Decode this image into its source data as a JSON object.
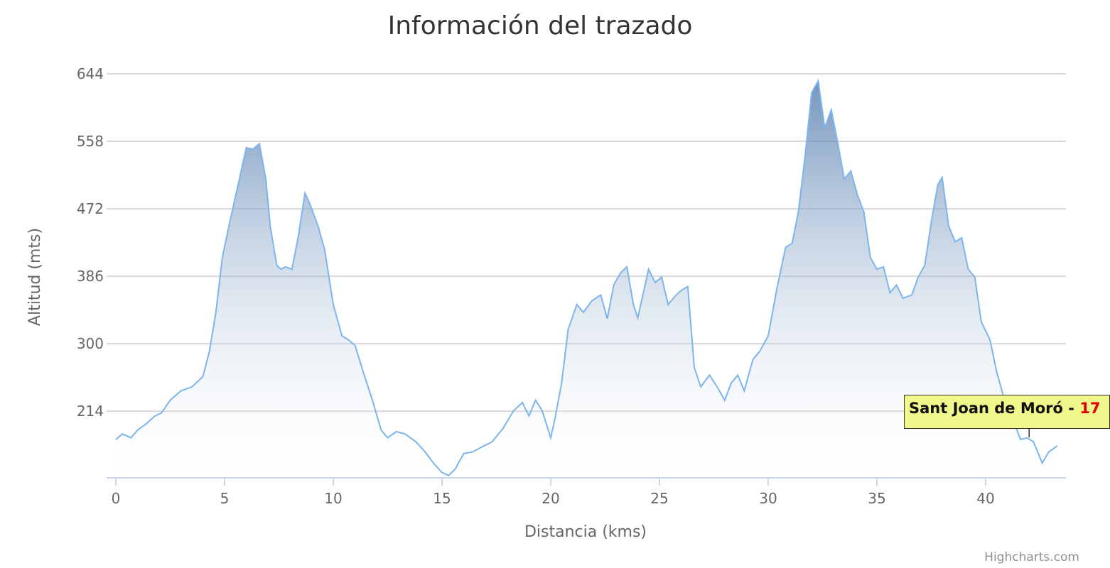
{
  "chart_data": {
    "type": "area",
    "title": "Información del trazado",
    "xlabel": "Distancia (kms)",
    "ylabel": "Altitud (mts)",
    "xlim": [
      0,
      43.3
    ],
    "ylim": [
      130,
      644
    ],
    "x_ticks": [
      "0",
      "5",
      "10",
      "15",
      "20",
      "25",
      "30",
      "35",
      "40"
    ],
    "y_ticks": [
      "644",
      "558",
      "472",
      "386",
      "300",
      "214"
    ],
    "grid": true,
    "legend": "none",
    "series": [
      {
        "x": [
          0,
          0.3,
          0.7,
          1.0,
          1.4,
          1.8,
          2.1,
          2.5,
          3.0,
          3.5,
          4.0,
          4.3,
          4.6,
          4.9,
          5.2,
          5.6,
          6.0,
          6.3,
          6.6,
          6.9,
          7.1,
          7.4,
          7.6,
          7.8,
          8.1,
          8.4,
          8.7,
          8.9,
          9.3,
          9.6,
          10.0,
          10.4,
          10.7,
          11.0,
          11.4,
          11.8,
          12.2,
          12.5,
          12.9,
          13.3,
          13.8,
          14.2,
          14.6,
          15.0,
          15.3,
          15.6,
          16.0,
          16.4,
          16.8,
          17.3,
          17.8,
          18.3,
          18.7,
          19.0,
          19.3,
          19.6,
          20.0,
          20.2,
          20.5,
          20.8,
          21.2,
          21.5,
          21.9,
          22.3,
          22.6,
          22.9,
          23.2,
          23.5,
          23.8,
          24.0,
          24.3,
          24.5,
          24.8,
          25.1,
          25.4,
          25.7,
          26.0,
          26.3,
          26.6,
          26.9,
          27.3,
          27.7,
          28.0,
          28.3,
          28.6,
          28.9,
          29.3,
          29.6,
          30.0,
          30.4,
          30.8,
          31.1,
          31.4,
          31.7,
          32.0,
          32.3,
          32.6,
          32.9,
          33.2,
          33.5,
          33.8,
          34.1,
          34.4,
          34.7,
          35.0,
          35.3,
          35.6,
          35.9,
          36.2,
          36.6,
          36.9,
          37.2,
          37.5,
          37.8,
          38.0,
          38.3,
          38.6,
          38.9,
          39.2,
          39.5,
          39.8,
          40.2,
          40.5,
          40.9,
          41.3,
          41.6,
          41.9,
          42.2,
          42.6,
          42.9,
          43.3
        ],
        "y": [
          178,
          185,
          180,
          190,
          198,
          208,
          212,
          228,
          240,
          245,
          258,
          290,
          340,
          410,
          450,
          500,
          550,
          548,
          555,
          510,
          450,
          400,
          395,
          398,
          395,
          438,
          492,
          480,
          450,
          420,
          350,
          310,
          305,
          298,
          262,
          228,
          190,
          180,
          188,
          185,
          175,
          163,
          148,
          136,
          132,
          140,
          160,
          162,
          168,
          175,
          192,
          215,
          225,
          208,
          228,
          215,
          180,
          205,
          250,
          318,
          350,
          340,
          355,
          362,
          332,
          375,
          390,
          398,
          350,
          333,
          370,
          395,
          378,
          385,
          350,
          360,
          368,
          373,
          270,
          245,
          260,
          243,
          228,
          250,
          260,
          240,
          280,
          290,
          310,
          370,
          423,
          428,
          470,
          540,
          620,
          635,
          575,
          598,
          556,
          510,
          520,
          490,
          468,
          410,
          395,
          398,
          365,
          375,
          358,
          362,
          385,
          400,
          455,
          503,
          512,
          450,
          430,
          435,
          395,
          385,
          328,
          305,
          265,
          225,
          200,
          178,
          180,
          175,
          148,
          162,
          170
        ]
      }
    ],
    "tooltip": {
      "label": "Sant Joan de Moró - ",
      "value": "17",
      "x": 42.0
    }
  },
  "credits": "Highcharts.com",
  "colors": {
    "line": "#7cb5ec",
    "area_top": "#4572a7",
    "area_bottom": "#ffffff",
    "grid": "#d8d8d8",
    "axis": "#ccd6eb",
    "tooltip_bg": "#f0f88c",
    "tooltip_value": "#e00000"
  }
}
